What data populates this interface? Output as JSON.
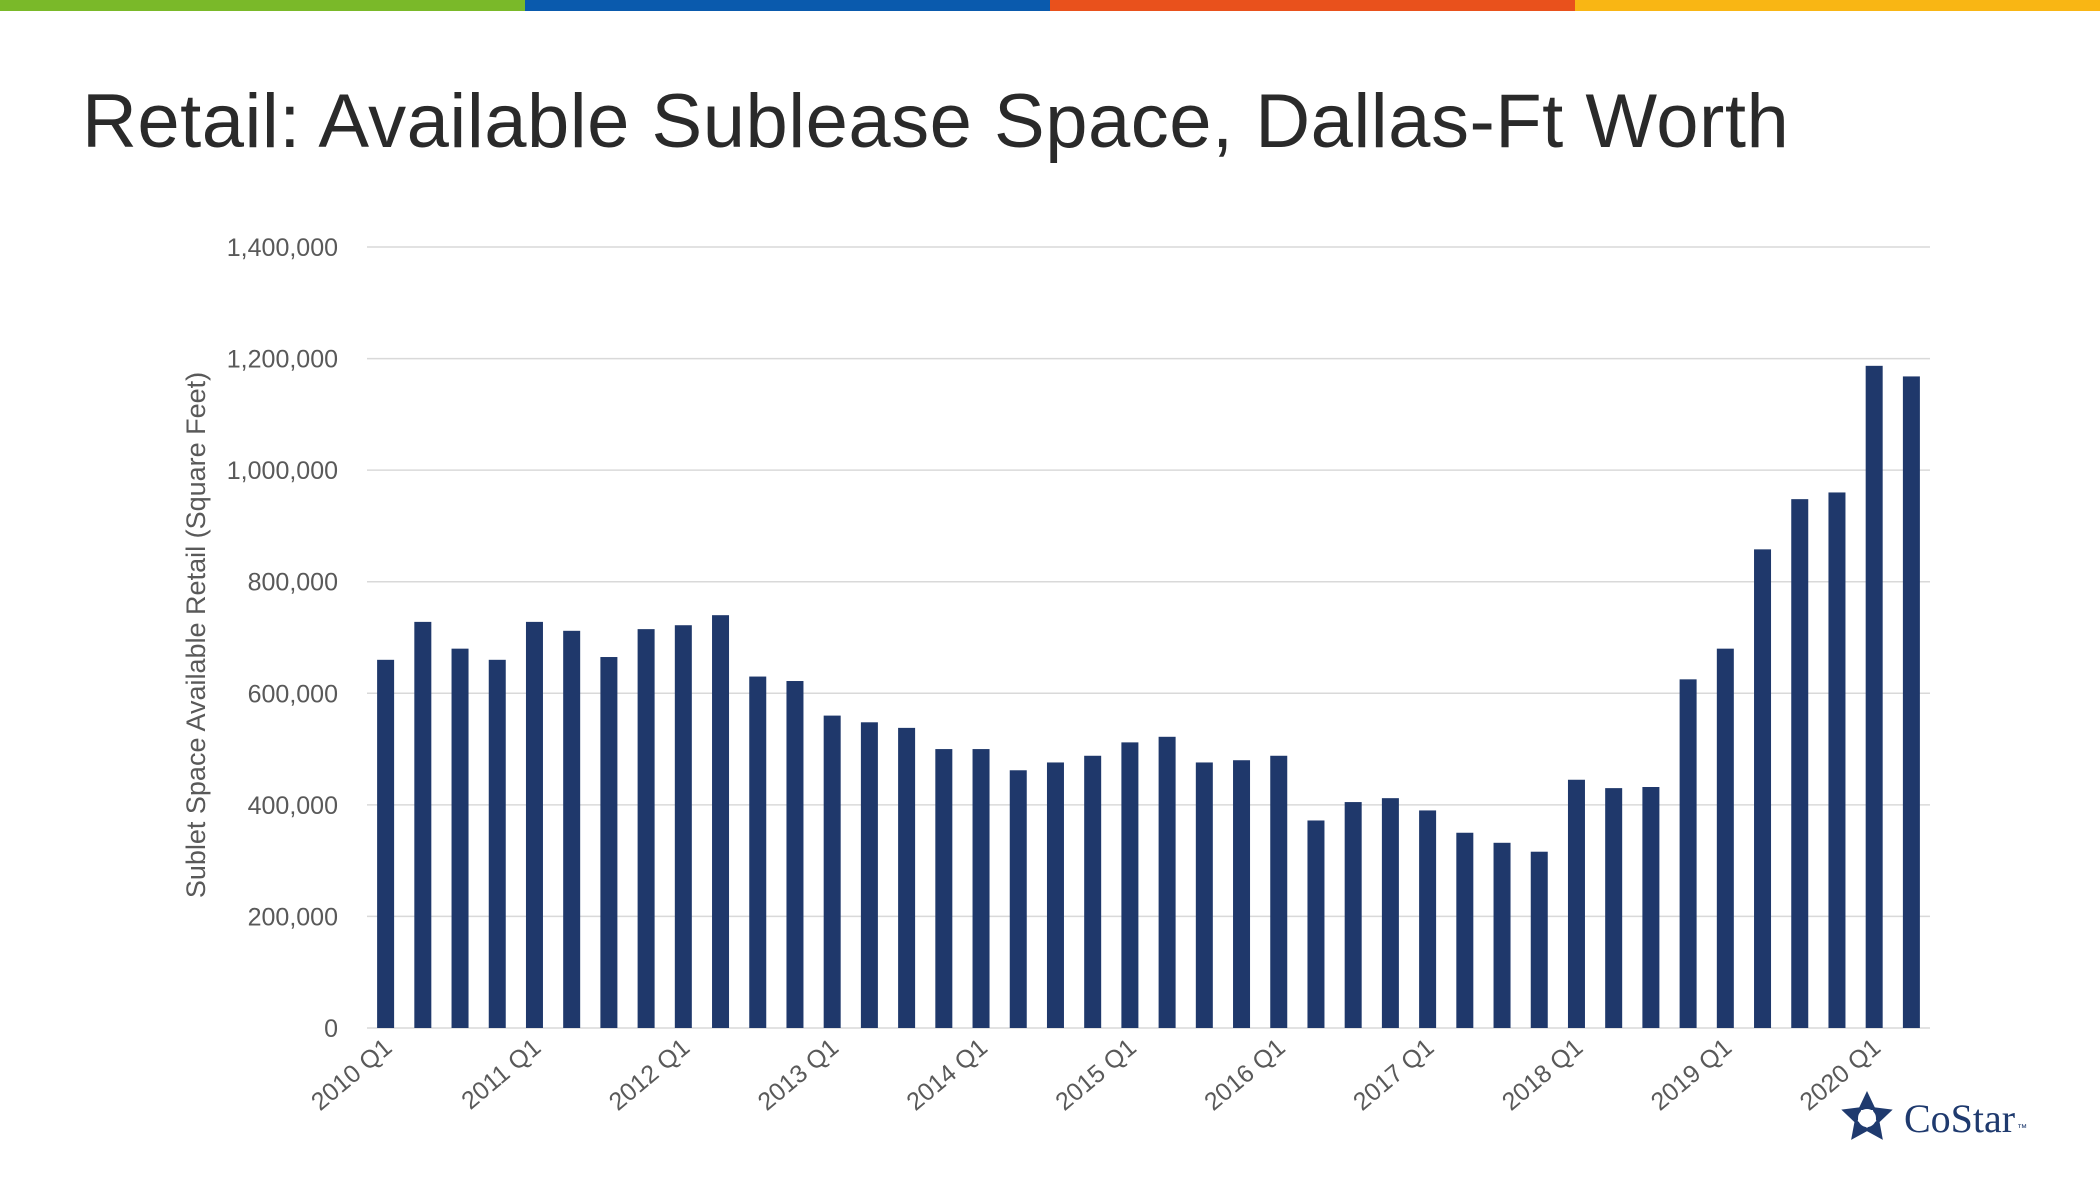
{
  "slide": {
    "title": "Retail: Available Sublease Space, Dallas-Ft Worth",
    "accent_colors": [
      "#7ab929",
      "#0a5aad",
      "#e9511c",
      "#f9b614"
    ]
  },
  "logo": {
    "text": "CoStar",
    "tm": "™",
    "color": "#1f3a6e"
  },
  "chart_data": {
    "type": "bar",
    "title": "Retail: Available Sublease Space, Dallas-Ft Worth",
    "xlabel": "",
    "ylabel": "Sublet Space Available Retail (Square Feet)",
    "ylim": [
      0,
      1400000
    ],
    "yticks": [
      0,
      200000,
      400000,
      600000,
      800000,
      1000000,
      1200000,
      1400000
    ],
    "ytick_labels": [
      "0",
      "200,000",
      "400,000",
      "600,000",
      "800,000",
      "1,000,000",
      "1,200,000",
      "1,400,000"
    ],
    "grid": true,
    "bar_color": "#1f386b",
    "categories": [
      "2010 Q1",
      "2010 Q2",
      "2010 Q3",
      "2010 Q4",
      "2011 Q1",
      "2011 Q2",
      "2011 Q3",
      "2011 Q4",
      "2012 Q1",
      "2012 Q2",
      "2012 Q3",
      "2012 Q4",
      "2013 Q1",
      "2013 Q2",
      "2013 Q3",
      "2013 Q4",
      "2014 Q1",
      "2014 Q2",
      "2014 Q3",
      "2014 Q4",
      "2015 Q1",
      "2015 Q2",
      "2015 Q3",
      "2015 Q4",
      "2016 Q1",
      "2016 Q2",
      "2016 Q3",
      "2016 Q4",
      "2017 Q1",
      "2017 Q2",
      "2017 Q3",
      "2017 Q4",
      "2018 Q1",
      "2018 Q2",
      "2018 Q3",
      "2018 Q4",
      "2019 Q1",
      "2019 Q2",
      "2019 Q3",
      "2019 Q4",
      "2020 Q1",
      "2020 Q2"
    ],
    "x_tick_labels": [
      "2010 Q1",
      "2011 Q1",
      "2012 Q1",
      "2013 Q1",
      "2014 Q1",
      "2015 Q1",
      "2016 Q1",
      "2017 Q1",
      "2018 Q1",
      "2019 Q1",
      "2020 Q1"
    ],
    "values": [
      660000,
      728000,
      680000,
      660000,
      728000,
      712000,
      665000,
      715000,
      722000,
      740000,
      630000,
      622000,
      560000,
      548000,
      538000,
      500000,
      500000,
      462000,
      476000,
      488000,
      512000,
      522000,
      476000,
      480000,
      488000,
      372000,
      405000,
      412000,
      390000,
      350000,
      332000,
      316000,
      445000,
      430000,
      432000,
      625000,
      680000,
      858000,
      948000,
      960000,
      1187000,
      1168000
    ]
  }
}
